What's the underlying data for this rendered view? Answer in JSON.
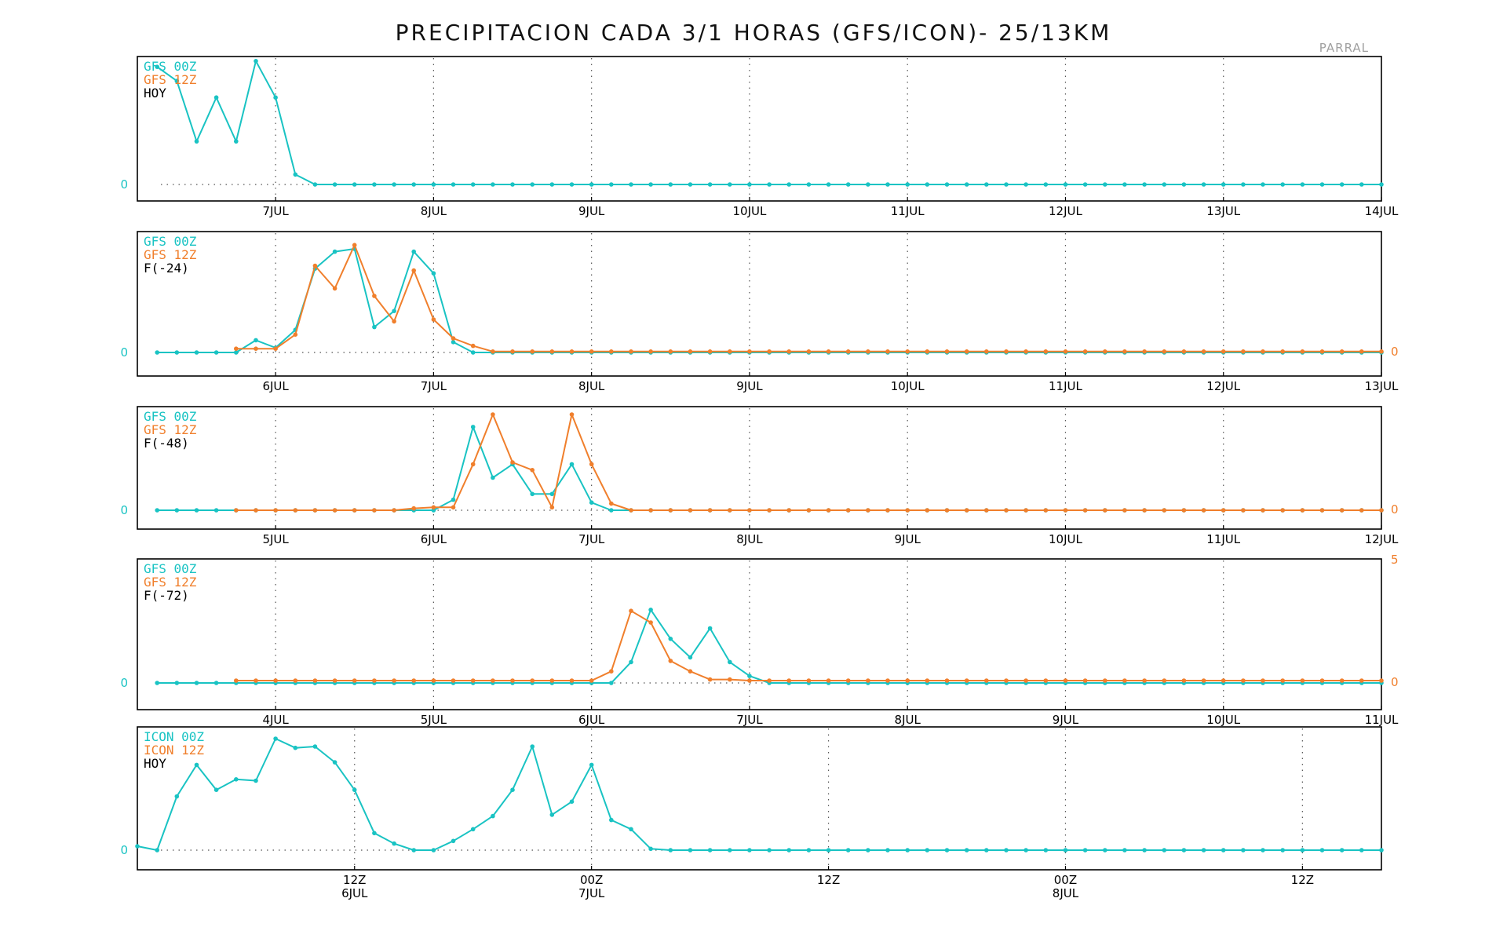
{
  "title": "PRECIPITACION CADA 3/1 HORAS (GFS/ICON)- 25/13KM",
  "station": "PARRAL",
  "colors": {
    "series_a": "#19c3c3",
    "series_b": "#f07f2c",
    "label": "#000000",
    "grid": "#555555",
    "frame": "#000000"
  },
  "chart_data": [
    {
      "type": "line",
      "legend": [
        "GFS 00Z",
        "GFS 12Z",
        "HOY"
      ],
      "xlim": [
        0,
        63
      ],
      "ylim": [
        0,
        1.45
      ],
      "x_ticks": [
        {
          "x": 7,
          "label": "7JUL"
        },
        {
          "x": 15,
          "label": "8JUL"
        },
        {
          "x": 23,
          "label": "9JUL"
        },
        {
          "x": 31,
          "label": "10JUL"
        },
        {
          "x": 39,
          "label": "11JUL"
        },
        {
          "x": 47,
          "label": "12JUL"
        },
        {
          "x": 55,
          "label": "13JUL"
        },
        {
          "x": 63,
          "label": "14JUL"
        }
      ],
      "left_zero_label": "0",
      "right_zero_label": "",
      "right_top_label": "",
      "series": [
        {
          "name": "GFS 00Z",
          "color_key": "series_a",
          "x_start": 1,
          "values": [
            1.42,
            1.25,
            0.52,
            1.05,
            0.52,
            1.49,
            1.05,
            0.12,
            0,
            0,
            0,
            0,
            0,
            0,
            0,
            0,
            0,
            0,
            0,
            0,
            0,
            0,
            0,
            0,
            0,
            0,
            0,
            0,
            0,
            0,
            0,
            0,
            0,
            0,
            0,
            0,
            0,
            0,
            0,
            0,
            0,
            0,
            0,
            0,
            0,
            0,
            0,
            0,
            0,
            0,
            0,
            0,
            0,
            0,
            0,
            0,
            0,
            0,
            0,
            0,
            0,
            0,
            0
          ]
        }
      ]
    },
    {
      "type": "line",
      "legend": [
        "GFS 00Z",
        "GFS 12Z",
        "F(-24)"
      ],
      "xlim": [
        0,
        63
      ],
      "ylim": [
        0,
        1.2
      ],
      "x_ticks": [
        {
          "x": 7,
          "label": "6JUL"
        },
        {
          "x": 15,
          "label": "7JUL"
        },
        {
          "x": 23,
          "label": "8JUL"
        },
        {
          "x": 31,
          "label": "9JUL"
        },
        {
          "x": 39,
          "label": "10JUL"
        },
        {
          "x": 47,
          "label": "11JUL"
        },
        {
          "x": 55,
          "label": "12JUL"
        },
        {
          "x": 63,
          "label": "13JUL"
        }
      ],
      "left_zero_label": "0",
      "right_zero_label": "0",
      "right_top_label": "",
      "series": [
        {
          "name": "GFS 00Z",
          "color_key": "series_a",
          "x_start": 1,
          "values": [
            0,
            0,
            0,
            0,
            0,
            0.13,
            0.05,
            0.24,
            0.89,
            1.07,
            1.1,
            0.27,
            0.44,
            1.07,
            0.84,
            0.11,
            0,
            0,
            0,
            0,
            0,
            0,
            0,
            0,
            0,
            0,
            0,
            0,
            0,
            0,
            0,
            0,
            0,
            0,
            0,
            0,
            0,
            0,
            0,
            0,
            0,
            0,
            0,
            0,
            0,
            0,
            0,
            0,
            0,
            0,
            0,
            0,
            0,
            0,
            0,
            0,
            0,
            0,
            0,
            0,
            0,
            0,
            0
          ]
        },
        {
          "name": "GFS 12Z",
          "color_key": "series_b",
          "x_start": 5,
          "values": [
            0.04,
            0.04,
            0.04,
            0.19,
            0.92,
            0.68,
            1.14,
            0.6,
            0.33,
            0.87,
            0.35,
            0.15,
            0.07,
            0.01,
            0.01,
            0.01,
            0.01,
            0.01,
            0.01,
            0.01,
            0.01,
            0.01,
            0.01,
            0.01,
            0.01,
            0.01,
            0.01,
            0.01,
            0.01,
            0.01,
            0.01,
            0.01,
            0.01,
            0.01,
            0.01,
            0.01,
            0.01,
            0.01,
            0.01,
            0.01,
            0.01,
            0.01,
            0.01,
            0.01,
            0.01,
            0.01,
            0.01,
            0.01,
            0.01,
            0.01,
            0.01,
            0.01,
            0.01,
            0.01,
            0.01,
            0.01,
            0.01,
            0.01,
            0.01
          ]
        }
      ]
    },
    {
      "type": "line",
      "legend": [
        "GFS 00Z",
        "GFS 12Z",
        "F(-48)"
      ],
      "xlim": [
        0,
        63
      ],
      "ylim": [
        0,
        1.0
      ],
      "x_ticks": [
        {
          "x": 7,
          "label": "5JUL"
        },
        {
          "x": 15,
          "label": "6JUL"
        },
        {
          "x": 23,
          "label": "7JUL"
        },
        {
          "x": 31,
          "label": "8JUL"
        },
        {
          "x": 39,
          "label": "9JUL"
        },
        {
          "x": 47,
          "label": "10JUL"
        },
        {
          "x": 55,
          "label": "11JUL"
        },
        {
          "x": 63,
          "label": "12JUL"
        }
      ],
      "left_zero_label": "0",
      "right_zero_label": "0",
      "right_top_label": "",
      "series": [
        {
          "name": "GFS 00Z",
          "color_key": "series_a",
          "x_start": 1,
          "values": [
            0,
            0,
            0,
            0,
            0,
            0,
            0,
            0,
            0,
            0,
            0,
            0,
            0,
            0,
            0,
            0.11,
            0.87,
            0.34,
            0.48,
            0.17,
            0.17,
            0.48,
            0.08,
            0,
            0,
            0,
            0,
            0,
            0,
            0,
            0,
            0,
            0,
            0,
            0,
            0,
            0,
            0,
            0,
            0,
            0,
            0,
            0,
            0,
            0,
            0,
            0,
            0,
            0,
            0,
            0,
            0,
            0,
            0,
            0,
            0,
            0,
            0,
            0,
            0,
            0,
            0,
            0
          ]
        },
        {
          "name": "GFS 12Z",
          "color_key": "series_b",
          "x_start": 5,
          "values": [
            0,
            0,
            0,
            0,
            0,
            0,
            0,
            0,
            0,
            0.02,
            0.03,
            0.03,
            0.48,
            1.0,
            0.5,
            0.42,
            0.03,
            1.0,
            0.48,
            0.07,
            0,
            0,
            0,
            0,
            0,
            0,
            0,
            0,
            0,
            0,
            0,
            0,
            0,
            0,
            0,
            0,
            0,
            0,
            0,
            0,
            0,
            0,
            0,
            0,
            0,
            0,
            0,
            0,
            0,
            0,
            0,
            0,
            0,
            0,
            0,
            0,
            0,
            0,
            0
          ]
        }
      ]
    },
    {
      "type": "line",
      "legend": [
        "GFS 00Z",
        "GFS 12Z",
        "F(-72)"
      ],
      "xlim": [
        0,
        63
      ],
      "ylim": [
        0,
        5
      ],
      "x_ticks": [
        {
          "x": 7,
          "label": "4JUL"
        },
        {
          "x": 15,
          "label": "5JUL"
        },
        {
          "x": 23,
          "label": "6JUL"
        },
        {
          "x": 31,
          "label": "7JUL"
        },
        {
          "x": 39,
          "label": "8JUL"
        },
        {
          "x": 47,
          "label": "9JUL"
        },
        {
          "x": 55,
          "label": "10JUL"
        },
        {
          "x": 63,
          "label": "11JUL"
        }
      ],
      "left_zero_label": "0",
      "right_zero_label": "0",
      "right_top_label": "5",
      "series": [
        {
          "name": "GFS 00Z",
          "color_key": "series_a",
          "x_start": 1,
          "values": [
            0,
            0,
            0,
            0,
            0,
            0,
            0,
            0,
            0,
            0,
            0,
            0,
            0,
            0,
            0,
            0,
            0,
            0,
            0,
            0,
            0,
            0,
            0,
            0,
            0.9,
            3.15,
            1.9,
            1.1,
            2.35,
            0.9,
            0.3,
            0,
            0,
            0,
            0,
            0,
            0,
            0,
            0,
            0,
            0,
            0,
            0,
            0,
            0,
            0,
            0,
            0,
            0,
            0,
            0,
            0,
            0,
            0,
            0,
            0,
            0,
            0,
            0,
            0,
            0,
            0,
            0
          ]
        },
        {
          "name": "GFS 12Z",
          "color_key": "series_b",
          "x_start": 5,
          "values": [
            0.1,
            0.1,
            0.1,
            0.1,
            0.1,
            0.1,
            0.1,
            0.1,
            0.1,
            0.1,
            0.1,
            0.1,
            0.1,
            0.1,
            0.1,
            0.1,
            0.1,
            0.1,
            0.1,
            0.5,
            3.1,
            2.6,
            0.95,
            0.5,
            0.15,
            0.15,
            0.1,
            0.1,
            0.1,
            0.1,
            0.1,
            0.1,
            0.1,
            0.1,
            0.1,
            0.1,
            0.1,
            0.1,
            0.1,
            0.1,
            0.1,
            0.1,
            0.1,
            0.1,
            0.1,
            0.1,
            0.1,
            0.1,
            0.1,
            0.1,
            0.1,
            0.1,
            0.1,
            0.1,
            0.1,
            0.1,
            0.1,
            0.1,
            0.1
          ]
        }
      ]
    },
    {
      "type": "line",
      "legend": [
        "ICON 00Z",
        "ICON 12Z",
        "HOY"
      ],
      "xlim": [
        0,
        63
      ],
      "ylim": [
        0,
        0.88
      ],
      "x_ticks": [
        {
          "x": 11,
          "label": "12Z",
          "label2": "6JUL"
        },
        {
          "x": 23,
          "label": "00Z",
          "label2": "7JUL"
        },
        {
          "x": 35,
          "label": "12Z",
          "label2": ""
        },
        {
          "x": 47,
          "label": "00Z",
          "label2": "8JUL"
        },
        {
          "x": 59,
          "label": "12Z",
          "label2": ""
        }
      ],
      "left_zero_label": "0",
      "right_zero_label": "",
      "right_top_label": "",
      "series": [
        {
          "name": "ICON 00Z",
          "color_key": "series_a",
          "x_start": 0,
          "values": [
            0.03,
            0,
            0.41,
            0.65,
            0.46,
            0.54,
            0.53,
            0.85,
            0.78,
            0.79,
            0.67,
            0.46,
            0.13,
            0.05,
            0,
            0,
            0.07,
            0.16,
            0.26,
            0.46,
            0.79,
            0.27,
            0.37,
            0.65,
            0.23,
            0.16,
            0.01,
            0,
            0,
            0,
            0,
            0,
            0,
            0,
            0,
            0,
            0,
            0,
            0,
            0,
            0,
            0,
            0,
            0,
            0,
            0,
            0,
            0,
            0,
            0,
            0,
            0,
            0,
            0,
            0,
            0,
            0,
            0,
            0,
            0,
            0,
            0,
            0,
            0
          ]
        }
      ]
    }
  ]
}
